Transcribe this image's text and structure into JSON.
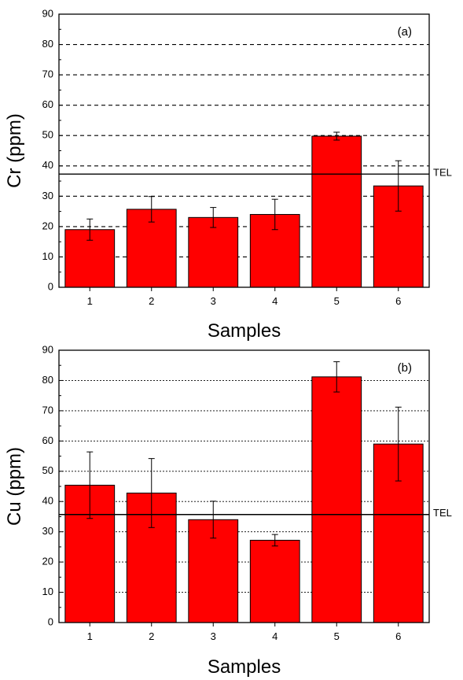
{
  "colors": {
    "bar": "#ff0000",
    "bar_edge": "#000000",
    "grid": "#000000"
  },
  "chart_data": [
    {
      "type": "bar",
      "panel_label": "(a)",
      "xlabel": "Samples",
      "ylabel": "Cr (ppm)",
      "categories": [
        "1",
        "2",
        "3",
        "4",
        "5",
        "6"
      ],
      "values": [
        19,
        25.7,
        23,
        24,
        49.8,
        33.4
      ],
      "error": [
        3.5,
        4.2,
        3.3,
        5,
        1.3,
        8.3
      ],
      "ylim": [
        0,
        90
      ],
      "yticks": [
        0,
        10,
        20,
        30,
        40,
        50,
        60,
        70,
        80,
        90
      ],
      "grid": "horizontal-dashed",
      "reference_line": {
        "label": "TEL",
        "value": 37.3
      }
    },
    {
      "type": "bar",
      "panel_label": "(b)",
      "xlabel": "Samples",
      "ylabel": "Cu (ppm)",
      "categories": [
        "1",
        "2",
        "3",
        "4",
        "5",
        "6"
      ],
      "values": [
        45.4,
        42.8,
        34,
        27.2,
        81.2,
        59
      ],
      "error": [
        11,
        11.4,
        6.1,
        1.9,
        5,
        12.2
      ],
      "ylim": [
        0,
        90
      ],
      "yticks": [
        0,
        10,
        20,
        30,
        40,
        50,
        60,
        70,
        80,
        90
      ],
      "grid": "horizontal-dotted",
      "reference_line": {
        "label": "TEL",
        "value": 35.7
      }
    }
  ]
}
